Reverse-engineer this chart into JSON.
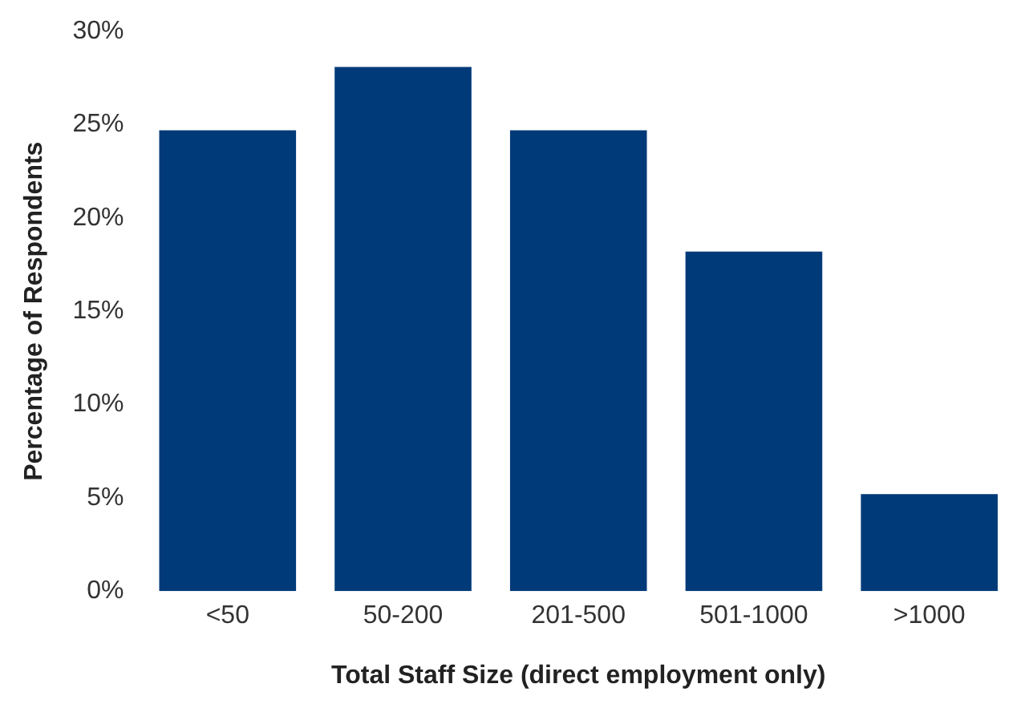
{
  "chart_data": {
    "type": "bar",
    "xlabel": "Total Staff Size (direct employment only)",
    "ylabel": "Percentage of Respondents",
    "categories": [
      "<50",
      "50-200",
      "201-500",
      "501-1000",
      ">1000"
    ],
    "values": [
      24.7,
      28.1,
      24.7,
      18.2,
      5.2
    ],
    "color": "#003a78",
    "ylim": [
      0,
      30
    ],
    "yticks": [
      {
        "value": 0,
        "label": "0%"
      },
      {
        "value": 5,
        "label": "5%"
      },
      {
        "value": 10,
        "label": "10%"
      },
      {
        "value": 15,
        "label": "15%"
      },
      {
        "value": 20,
        "label": "20%"
      },
      {
        "value": 25,
        "label": "25%"
      },
      {
        "value": 30,
        "label": "30%"
      }
    ],
    "grid": false,
    "legend": false
  }
}
